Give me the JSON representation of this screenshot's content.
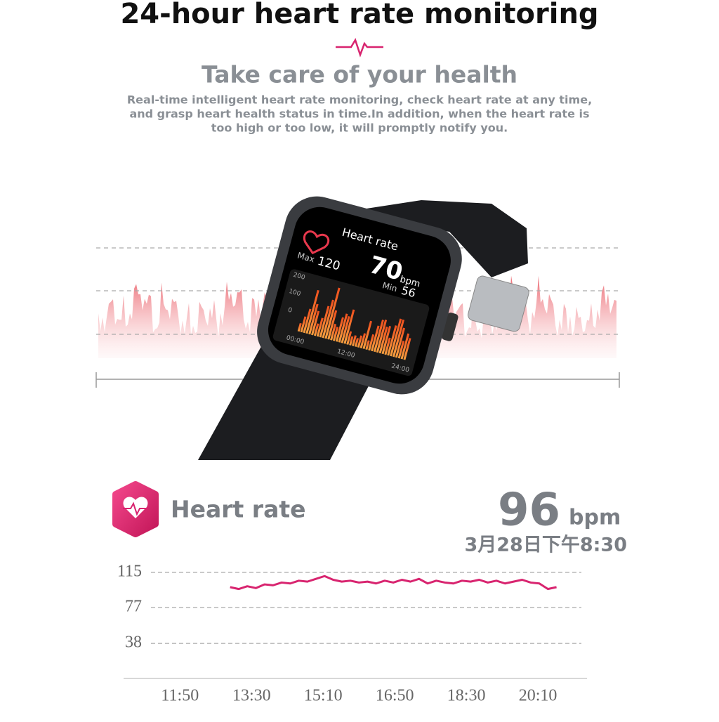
{
  "header": {
    "title": "24-hour heart rate monitoring",
    "subtitle": "Take care of your health",
    "description": [
      "Real-time intelligent heart rate monitoring, check heart rate at any time,",
      "and grasp heart health status in time.In addition, when the heart rate is",
      "too high or too low, it will promptly notify you."
    ]
  },
  "watch_screen": {
    "title": "Heart rate",
    "value": 70,
    "unit": "bpm",
    "max_label": "Max",
    "max_value": 120,
    "min_label": "Min",
    "min_value": 56,
    "yticks": [
      "200",
      "100",
      "0"
    ],
    "xticks": [
      "00:00",
      "12:00",
      "24:00"
    ]
  },
  "reading": {
    "label": "Heart rate",
    "value": 96,
    "unit": "bpm",
    "time": "3月28日下午8:30"
  },
  "chart_data": {
    "type": "line",
    "x": [
      13.0,
      13.2,
      13.4,
      13.6,
      13.8,
      14.0,
      14.2,
      14.4,
      14.6,
      14.8,
      15.0,
      15.2,
      15.4,
      15.6,
      15.8,
      16.0,
      16.2,
      16.4,
      16.6,
      16.8,
      17.0,
      17.2,
      17.4,
      17.6,
      17.8,
      18.0,
      18.2,
      18.4,
      18.6,
      18.8,
      19.0,
      19.2,
      19.4,
      19.6,
      19.8,
      20.0,
      20.2,
      20.4,
      20.6
    ],
    "series": [
      {
        "color": "#d8246f",
        "values": [
          99,
          97,
          100,
          98,
          102,
          101,
          104,
          103,
          106,
          105,
          108,
          111,
          107,
          105,
          106,
          104,
          105,
          103,
          106,
          104,
          107,
          105,
          108,
          103,
          106,
          104,
          103,
          106,
          105,
          107,
          104,
          106,
          103,
          105,
          107,
          104,
          103,
          97,
          99
        ]
      }
    ],
    "xlim": [
      10.52,
      21.31
    ],
    "xticks": [
      {
        "value": 11.833,
        "label": "11:50"
      },
      {
        "value": 13.5,
        "label": "13:30"
      },
      {
        "value": 15.167,
        "label": "15:10"
      },
      {
        "value": 16.833,
        "label": "16:50"
      },
      {
        "value": 18.5,
        "label": "18:30"
      },
      {
        "value": 20.167,
        "label": "20:10"
      }
    ],
    "ylim": [
      0,
      115
    ],
    "yticks": [
      115,
      77,
      38
    ],
    "grid": true
  }
}
